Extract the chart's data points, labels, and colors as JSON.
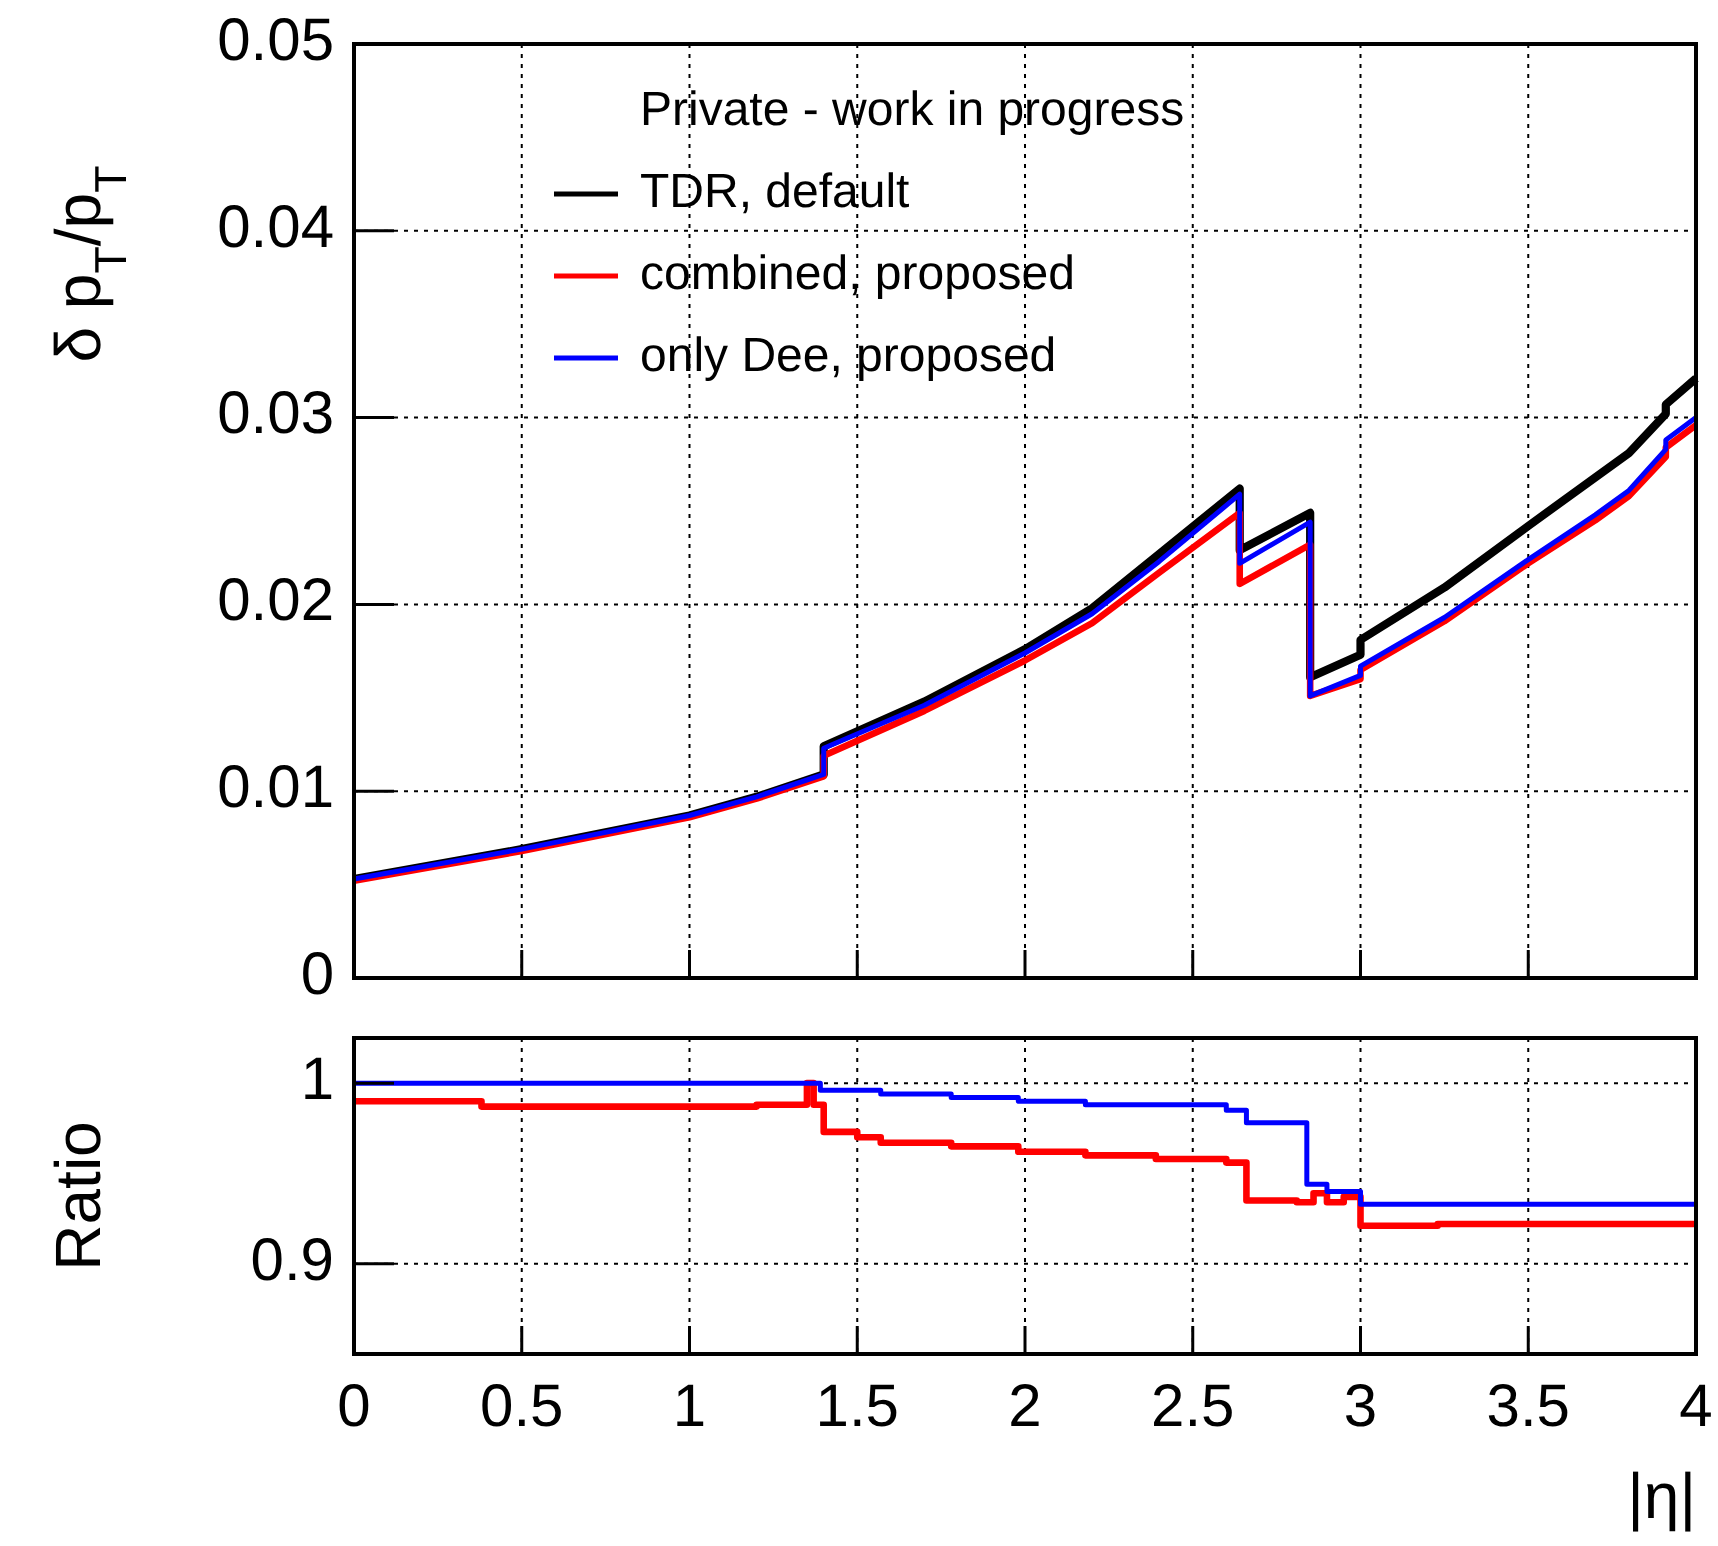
{
  "chart_data": [
    {
      "type": "line",
      "ylabel": "δ p$_{T}$/p$_{T}$",
      "legend_title": "Private - work in progress",
      "legend": "top",
      "grid": true,
      "tick_labels": "y",
      "xlim": [
        0,
        4
      ],
      "xticks": [
        0,
        0.5,
        1,
        1.5,
        2,
        2.5,
        3,
        3.5,
        4
      ],
      "ylim": [
        0,
        0.05
      ],
      "yticks": [
        0,
        0.01,
        0.02,
        0.03,
        0.04,
        0.05
      ],
      "series": [
        {
          "name": "TDR, default",
          "color": "#000000",
          "x": [
            0,
            0.5,
            1,
            1.2,
            1.4,
            1.4,
            1.7,
            2,
            2.2,
            2.4,
            2.64,
            2.64,
            2.85,
            2.85,
            3,
            3,
            3.25,
            3.5,
            3.7,
            3.8,
            3.91,
            3.91,
            4
          ],
          "values": [
            0.0053,
            0.0069,
            0.0087,
            0.0097,
            0.0109,
            0.0124,
            0.0148,
            0.0176,
            0.0198,
            0.0227,
            0.0262,
            0.0229,
            0.0249,
            0.0161,
            0.0173,
            0.0181,
            0.0209,
            0.0242,
            0.0268,
            0.0281,
            0.0302,
            0.0307,
            0.0321
          ]
        },
        {
          "name": "combined, proposed",
          "color": "#ff0000",
          "x": [
            0,
            0.5,
            1,
            1.2,
            1.4,
            1.4,
            1.7,
            2,
            2.2,
            2.4,
            2.64,
            2.64,
            2.85,
            2.85,
            3,
            3,
            3.25,
            3.5,
            3.7,
            3.8,
            3.91,
            3.91,
            4
          ],
          "values": [
            0.0052,
            0.0068,
            0.0086,
            0.0096,
            0.0108,
            0.0119,
            0.0143,
            0.017,
            0.019,
            0.0217,
            0.0249,
            0.0211,
            0.0232,
            0.0151,
            0.016,
            0.0165,
            0.0191,
            0.0222,
            0.0245,
            0.0258,
            0.0279,
            0.0284,
            0.0296
          ]
        },
        {
          "name": "only Dee, proposed",
          "color": "#0000ff",
          "x": [
            0,
            0.5,
            1,
            1.2,
            1.4,
            1.4,
            1.7,
            2,
            2.2,
            2.4,
            2.64,
            2.64,
            2.85,
            2.85,
            3,
            3,
            3.25,
            3.5,
            3.7,
            3.8,
            3.91,
            3.91,
            4
          ],
          "values": [
            0.0053,
            0.0069,
            0.0087,
            0.0097,
            0.0109,
            0.0123,
            0.0146,
            0.0174,
            0.0195,
            0.0223,
            0.0259,
            0.0222,
            0.0244,
            0.0151,
            0.0162,
            0.0167,
            0.0193,
            0.0224,
            0.0248,
            0.0261,
            0.0283,
            0.0288,
            0.03
          ]
        }
      ]
    },
    {
      "type": "step",
      "ylabel": "Ratio",
      "xlabel": "|η|",
      "grid": true,
      "xlim": [
        0,
        4
      ],
      "xticks": [
        0,
        0.5,
        1,
        1.5,
        2,
        2.5,
        3,
        3.5,
        4
      ],
      "ylim": [
        0.85,
        1.025
      ],
      "yticks": [
        0.9,
        1
      ],
      "series": [
        {
          "color": "#ff0000",
          "x": [
            0,
            0.38,
            1.2,
            1.35,
            1.37,
            1.4,
            1.5,
            1.57,
            1.78,
            1.98,
            2.18,
            2.39,
            2.6,
            2.66,
            2.81,
            2.86,
            2.9,
            2.95,
            3,
            3.23,
            4
          ],
          "values": [
            0.99,
            0.987,
            0.988,
            1,
            0.988,
            0.973,
            0.97,
            0.967,
            0.965,
            0.962,
            0.96,
            0.958,
            0.956,
            0.935,
            0.934,
            0.939,
            0.934,
            0.937,
            0.921,
            0.922,
            0.922
          ]
        },
        {
          "color": "#0000ff",
          "x": [
            0,
            1.39,
            1.57,
            1.78,
            1.98,
            2.18,
            2.6,
            2.66,
            2.84,
            2.9,
            3,
            4
          ],
          "values": [
            1,
            0.996,
            0.994,
            0.992,
            0.99,
            0.988,
            0.985,
            0.978,
            0.944,
            0.94,
            0.933,
            0.933
          ]
        }
      ]
    }
  ]
}
